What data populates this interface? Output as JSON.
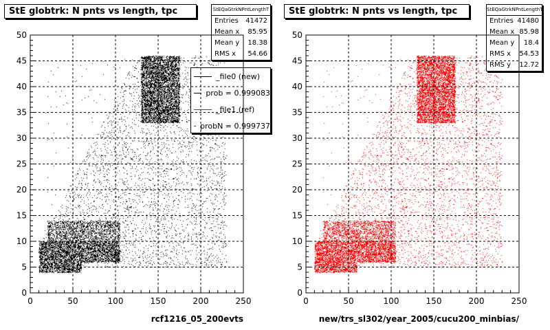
{
  "footer_text": "",
  "panels": [
    {
      "title": "StE globtrk: N pnts vs length, tpc",
      "xlabel": "rcf1216_05_200evts",
      "color": "#000000",
      "stats": {
        "header": "StEQaGtrkNPntLengthT",
        "rows": [
          {
            "label": "Entries",
            "value": "41472"
          },
          {
            "label": "Mean x",
            "value": "85.95"
          },
          {
            "label": "Mean y",
            "value": "18.38"
          },
          {
            "label": "RMS x",
            "value": "54.66"
          }
        ]
      },
      "legend": [
        {
          "label": "_file0 (new)",
          "color": "#000000"
        },
        {
          "label": "prob = 0.999083",
          "color": "#000000"
        },
        {
          "label": "_file1 (ref)",
          "color": "#ff0000"
        },
        {
          "label": "probN = 0.999737",
          "color": "#ff0000"
        }
      ]
    },
    {
      "title": "StE globtrk: N pnts vs length, tpc",
      "xlabel": "new/trs_sl302/year_2005/cucu200_minbias/",
      "color": "#ff0000",
      "stats": {
        "header": "StEQaGtrkNPntLengthT",
        "rows": [
          {
            "label": "Entries",
            "value": "41480"
          },
          {
            "label": "Mean x",
            "value": "85.98"
          },
          {
            "label": "Mean y",
            "value": "18.4"
          },
          {
            "label": "RMS x",
            "value": "54.53"
          },
          {
            "label": "RMS y",
            "value": "12.72"
          }
        ]
      }
    }
  ],
  "chart_data": [
    {
      "type": "scatter",
      "title": "StE globtrk: N pnts vs length, tpc",
      "xlabel": "rcf1216_05_200evts",
      "ylabel": "",
      "xlim": [
        0,
        250
      ],
      "ylim": [
        0,
        50
      ],
      "xticks": [
        0,
        50,
        100,
        150,
        200,
        250
      ],
      "yticks": [
        0,
        5,
        10,
        15,
        20,
        25,
        30,
        35,
        40,
        45,
        50
      ],
      "grid": true,
      "color": "#000000",
      "series": [
        {
          "density_regions": [
            {
              "x": [
                10,
                60
              ],
              "y": [
                4,
                6
              ],
              "density": "very high"
            },
            {
              "x": [
                10,
                105
              ],
              "y": [
                6,
                10
              ],
              "density": "very high"
            },
            {
              "x": [
                20,
                105
              ],
              "y": [
                10,
                14
              ],
              "density": "high"
            },
            {
              "x": [
                130,
                175
              ],
              "y": [
                33,
                46
              ],
              "density": "very high"
            },
            {
              "x": [
                15,
                230
              ],
              "y": [
                5,
                46
              ],
              "density": "medium"
            }
          ]
        }
      ]
    },
    {
      "type": "scatter",
      "title": "StE globtrk: N pnts vs length, tpc",
      "xlabel": "new/trs_sl302/year_2005/cucu200_minbias/",
      "ylabel": "",
      "xlim": [
        0,
        250
      ],
      "ylim": [
        0,
        50
      ],
      "xticks": [
        0,
        50,
        100,
        150,
        200,
        250
      ],
      "yticks": [
        0,
        5,
        10,
        15,
        20,
        25,
        30,
        35,
        40,
        45,
        50
      ],
      "grid": true,
      "color": "#ff0000",
      "series": [
        {
          "density_regions": [
            {
              "x": [
                10,
                60
              ],
              "y": [
                4,
                6
              ],
              "density": "very high"
            },
            {
              "x": [
                10,
                105
              ],
              "y": [
                6,
                10
              ],
              "density": "very high"
            },
            {
              "x": [
                20,
                105
              ],
              "y": [
                10,
                14
              ],
              "density": "high"
            },
            {
              "x": [
                130,
                175
              ],
              "y": [
                33,
                46
              ],
              "density": "very high"
            },
            {
              "x": [
                15,
                230
              ],
              "y": [
                5,
                46
              ],
              "density": "medium"
            }
          ]
        }
      ]
    }
  ]
}
